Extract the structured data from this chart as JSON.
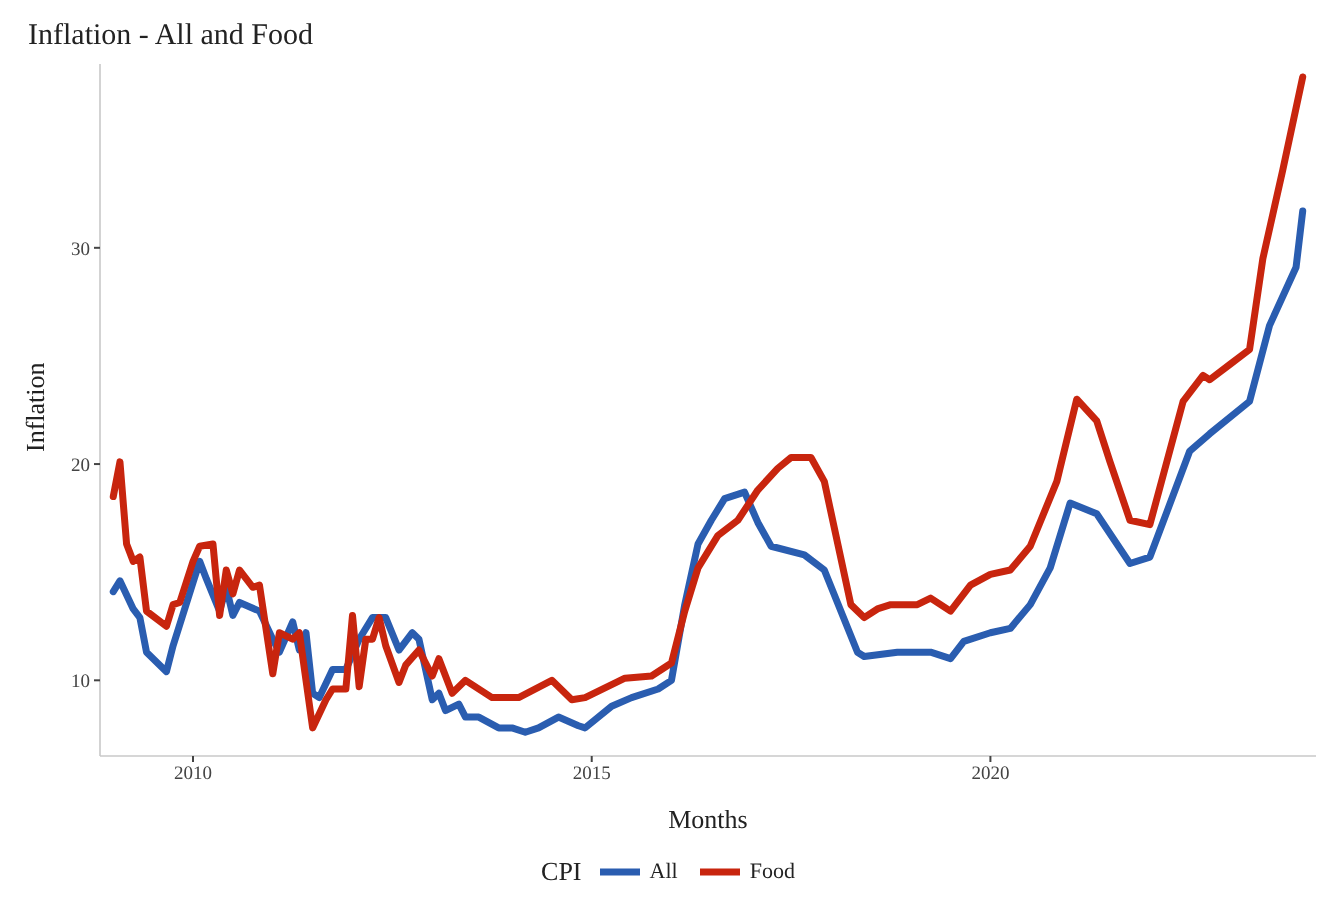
{
  "chart_data": {
    "type": "line",
    "title": "Inflation - All and Food",
    "xlabel": "Months",
    "ylabel": "Inflation",
    "legend_title": "CPI",
    "legend": "bottom",
    "grid": false,
    "marker": "none",
    "line_style": "solid",
    "xlim": [
      "2008-11",
      "2024-02"
    ],
    "xticks": [
      "2010",
      "2015",
      "2020"
    ],
    "ylim": [
      6.5,
      38.5
    ],
    "yticks": [
      10,
      20,
      30
    ],
    "series": [
      {
        "name": "All",
        "color": "#2a5db0",
        "x": [
          "2009-01",
          "2009-02",
          "2009-04",
          "2009-05",
          "2009-06",
          "2009-09",
          "2009-10",
          "2010-02",
          "2010-03",
          "2010-05",
          "2010-06",
          "2010-07",
          "2010-08",
          "2010-11",
          "2011-01",
          "2011-02",
          "2011-04",
          "2011-05",
          "2011-06",
          "2011-07",
          "2011-08",
          "2011-10",
          "2011-12",
          "2012-02",
          "2012-04",
          "2012-06",
          "2012-08",
          "2012-10",
          "2012-11",
          "2013-01",
          "2013-02",
          "2013-03",
          "2013-05",
          "2013-06",
          "2013-08",
          "2013-11",
          "2014-01",
          "2014-03",
          "2014-05",
          "2014-08",
          "2014-11",
          "2014-12",
          "2015-04",
          "2015-07",
          "2015-11",
          "2016-01",
          "2016-03",
          "2016-05",
          "2016-07",
          "2016-09",
          "2016-12",
          "2017-02",
          "2017-04",
          "2017-09",
          "2017-12",
          "2018-05",
          "2018-06",
          "2018-11",
          "2019-04",
          "2019-07",
          "2019-09",
          "2020-01",
          "2020-04",
          "2020-07",
          "2020-10",
          "2021-01",
          "2021-05",
          "2021-10",
          "2022-01",
          "2022-07",
          "2022-10",
          "2023-04",
          "2023-07",
          "2023-11",
          "2023-12"
        ],
        "values": [
          14.1,
          14.6,
          13.3,
          12.9,
          11.3,
          10.4,
          11.6,
          15.5,
          14.7,
          13.2,
          14.3,
          13.0,
          13.6,
          13.2,
          11.9,
          11.3,
          12.7,
          11.4,
          12.2,
          9.4,
          9.2,
          10.5,
          10.5,
          11.9,
          12.9,
          12.9,
          11.4,
          12.2,
          11.9,
          9.1,
          9.4,
          8.6,
          8.9,
          8.3,
          8.3,
          7.8,
          7.8,
          7.6,
          7.8,
          8.3,
          7.9,
          7.8,
          8.8,
          9.2,
          9.6,
          10.0,
          13.5,
          16.3,
          17.4,
          18.4,
          18.7,
          17.3,
          16.2,
          15.8,
          15.1,
          11.3,
          11.1,
          11.3,
          11.3,
          11.0,
          11.8,
          12.2,
          12.4,
          13.5,
          15.2,
          18.2,
          17.7,
          15.4,
          15.7,
          20.6,
          21.4,
          22.9,
          26.4,
          29.1,
          31.7
        ]
      },
      {
        "name": "Food",
        "color": "#c8250e",
        "x": [
          "2009-01",
          "2009-02",
          "2009-03",
          "2009-04",
          "2009-05",
          "2009-06",
          "2009-09",
          "2009-10",
          "2009-11",
          "2010-01",
          "2010-02",
          "2010-04",
          "2010-05",
          "2010-06",
          "2010-07",
          "2010-08",
          "2010-10",
          "2010-11",
          "2011-01",
          "2011-02",
          "2011-04",
          "2011-05",
          "2011-07",
          "2011-09",
          "2011-10",
          "2011-12",
          "2012-01",
          "2012-02",
          "2012-03",
          "2012-04",
          "2012-05",
          "2012-06",
          "2012-08",
          "2012-09",
          "2012-11",
          "2013-01",
          "2013-02",
          "2013-04",
          "2013-06",
          "2013-10",
          "2014-02",
          "2014-07",
          "2014-10",
          "2014-12",
          "2015-06",
          "2015-10",
          "2016-01",
          "2016-03",
          "2016-05",
          "2016-08",
          "2016-11",
          "2017-02",
          "2017-05",
          "2017-07",
          "2017-10",
          "2017-12",
          "2018-04",
          "2018-06",
          "2018-08",
          "2018-10",
          "2019-02",
          "2019-04",
          "2019-07",
          "2019-10",
          "2020-01",
          "2020-04",
          "2020-07",
          "2020-11",
          "2021-02",
          "2021-05",
          "2021-07",
          "2021-10",
          "2022-01",
          "2022-06",
          "2022-09",
          "2022-10",
          "2023-01",
          "2023-04",
          "2023-06",
          "2023-09",
          "2023-12"
        ],
        "values": [
          18.5,
          20.1,
          16.3,
          15.5,
          15.7,
          13.2,
          12.5,
          13.5,
          13.6,
          15.5,
          16.2,
          16.3,
          13.0,
          15.1,
          14.0,
          15.1,
          14.3,
          14.4,
          10.3,
          12.2,
          11.9,
          12.2,
          7.8,
          9.1,
          9.6,
          9.6,
          13.0,
          9.7,
          11.9,
          11.9,
          12.9,
          11.6,
          9.9,
          10.7,
          11.4,
          10.2,
          11.0,
          9.4,
          10.0,
          9.2,
          9.2,
          10.0,
          9.1,
          9.2,
          10.1,
          10.2,
          10.8,
          13.2,
          15.2,
          16.7,
          17.4,
          18.8,
          19.8,
          20.3,
          20.3,
          19.2,
          13.5,
          12.9,
          13.3,
          13.5,
          13.5,
          13.8,
          13.2,
          14.4,
          14.9,
          15.1,
          16.2,
          19.2,
          23.0,
          22.0,
          20.1,
          17.4,
          17.2,
          22.9,
          24.1,
          23.9,
          24.6,
          25.3,
          29.5,
          33.6,
          37.9
        ]
      }
    ]
  }
}
